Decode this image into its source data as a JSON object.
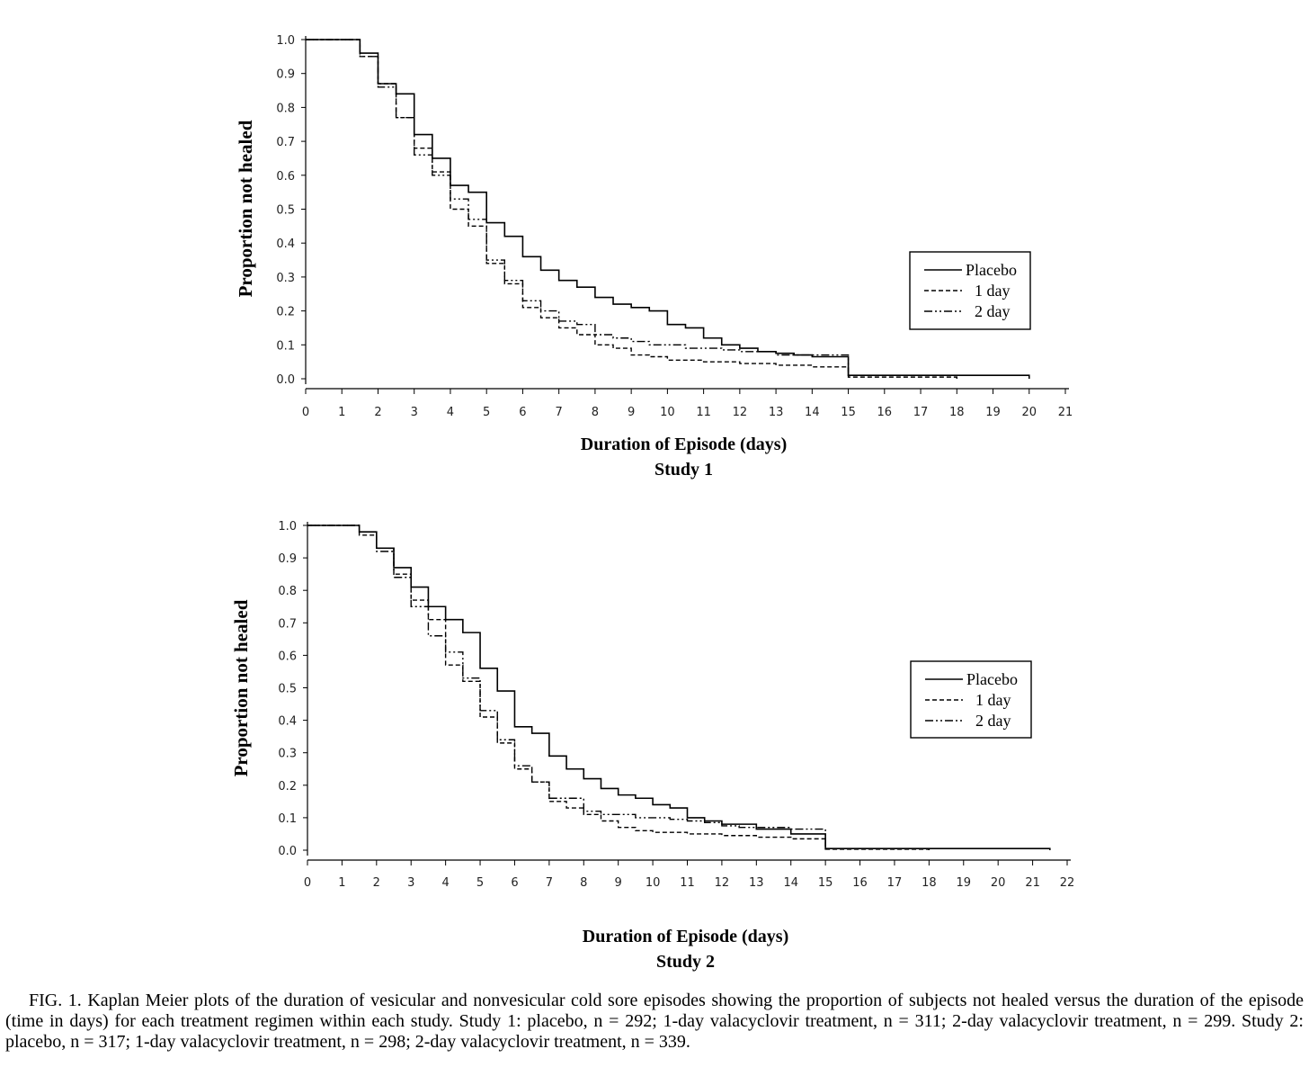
{
  "figure": {
    "caption": "FIG. 1. Kaplan Meier plots of the duration of vesicular and nonvesicular cold sore episodes showing the proportion of subjects not healed versus the duration of the episode (time in days) for each treatment regimen within each study. Study 1: placebo, n = 292; 1-day valacyclovir treatment, n = 311; 2-day valacyclovir treatment, n = 299. Study 2: placebo, n = 317; 1-day valacyclovir treatment, n = 298; 2-day valacyclovir treatment, n = 339."
  },
  "chart_data": [
    {
      "type": "line",
      "step": true,
      "title": "Study 1",
      "xlabel": "Duration of Episode (days)",
      "ylabel": "Proportion not healed",
      "xlim": [
        0,
        21
      ],
      "ylim": [
        0,
        1.0
      ],
      "xticks": [
        0,
        1,
        2,
        3,
        4,
        5,
        6,
        7,
        8,
        9,
        10,
        11,
        12,
        13,
        14,
        15,
        16,
        17,
        18,
        19,
        20,
        21
      ],
      "yticks": [
        "0.0",
        "0.1",
        "0.2",
        "0.3",
        "0.4",
        "0.5",
        "0.6",
        "0.7",
        "0.8",
        "0.9",
        "1.0"
      ],
      "legend": {
        "position": "right",
        "entries": [
          "Placebo",
          "1 day",
          "2 day"
        ]
      },
      "series": [
        {
          "name": "Placebo",
          "style": "solid",
          "x": [
            0,
            1.5,
            2,
            2.5,
            3,
            3.5,
            4,
            4.5,
            5,
            5.5,
            6,
            6.5,
            7,
            7.5,
            8,
            8.5,
            9,
            9.5,
            10,
            10.5,
            11,
            11.5,
            12,
            12.5,
            13,
            13.5,
            14,
            15,
            20
          ],
          "y": [
            1.0,
            0.96,
            0.87,
            0.84,
            0.72,
            0.65,
            0.57,
            0.55,
            0.46,
            0.42,
            0.36,
            0.32,
            0.29,
            0.27,
            0.24,
            0.22,
            0.21,
            0.2,
            0.16,
            0.15,
            0.12,
            0.1,
            0.09,
            0.08,
            0.075,
            0.07,
            0.065,
            0.01,
            0.0
          ]
        },
        {
          "name": "1 day",
          "style": "dashed",
          "x": [
            0,
            1.5,
            2,
            2.5,
            3,
            3.5,
            4,
            4.5,
            5,
            5.5,
            6,
            6.5,
            7,
            7.5,
            8,
            8.5,
            9,
            9.5,
            10,
            11,
            12,
            13,
            14,
            15,
            18
          ],
          "y": [
            1.0,
            0.95,
            0.87,
            0.77,
            0.68,
            0.61,
            0.5,
            0.45,
            0.34,
            0.28,
            0.21,
            0.18,
            0.15,
            0.13,
            0.1,
            0.09,
            0.07,
            0.065,
            0.055,
            0.05,
            0.045,
            0.04,
            0.035,
            0.005,
            0.0
          ]
        },
        {
          "name": "2 day",
          "style": "dashdot",
          "x": [
            0,
            1.5,
            2,
            2.5,
            3,
            3.5,
            4,
            4.5,
            5,
            5.5,
            6,
            6.5,
            7,
            7.5,
            8,
            8.5,
            9,
            9.5,
            10,
            10.5,
            11,
            11.5,
            12,
            12.5,
            13,
            14,
            15,
            18
          ],
          "y": [
            1.0,
            0.95,
            0.86,
            0.77,
            0.66,
            0.6,
            0.53,
            0.47,
            0.35,
            0.29,
            0.23,
            0.2,
            0.17,
            0.16,
            0.13,
            0.12,
            0.11,
            0.1,
            0.1,
            0.09,
            0.09,
            0.085,
            0.08,
            0.08,
            0.07,
            0.07,
            0.01,
            0.0
          ]
        }
      ]
    },
    {
      "type": "line",
      "step": true,
      "title": "Study 2",
      "xlabel": "Duration of Episode (days)",
      "ylabel": "Proportion not healed",
      "xlim": [
        0,
        22
      ],
      "ylim": [
        0,
        1.0
      ],
      "xticks": [
        0,
        1,
        2,
        3,
        4,
        5,
        6,
        7,
        8,
        9,
        10,
        11,
        12,
        13,
        14,
        15,
        16,
        17,
        18,
        19,
        20,
        21,
        22
      ],
      "yticks": [
        "0.0",
        "0.1",
        "0.2",
        "0.3",
        "0.4",
        "0.5",
        "0.6",
        "0.7",
        "0.8",
        "0.9",
        "1.0"
      ],
      "legend": {
        "position": "right",
        "entries": [
          "Placebo",
          "1 day",
          "2 day"
        ]
      },
      "series": [
        {
          "name": "Placebo",
          "style": "solid",
          "x": [
            0,
            1.5,
            2,
            2.5,
            3,
            3.5,
            4,
            4.5,
            5,
            5.5,
            6,
            6.5,
            7,
            7.5,
            8,
            8.5,
            9,
            9.5,
            10,
            10.5,
            11,
            11.5,
            12,
            13,
            14,
            15,
            21.5
          ],
          "y": [
            1.0,
            0.98,
            0.93,
            0.87,
            0.81,
            0.75,
            0.71,
            0.67,
            0.56,
            0.49,
            0.38,
            0.36,
            0.29,
            0.25,
            0.22,
            0.19,
            0.17,
            0.16,
            0.14,
            0.13,
            0.1,
            0.09,
            0.08,
            0.065,
            0.05,
            0.005,
            0.0
          ]
        },
        {
          "name": "1 day",
          "style": "dashed",
          "x": [
            0,
            1.5,
            2,
            2.5,
            3,
            3.5,
            4,
            4.5,
            5,
            5.5,
            6,
            6.5,
            7,
            7.5,
            8,
            8.5,
            9,
            9.5,
            10,
            11,
            12,
            13,
            14,
            15,
            18
          ],
          "y": [
            1.0,
            0.97,
            0.93,
            0.85,
            0.77,
            0.71,
            0.57,
            0.52,
            0.41,
            0.33,
            0.25,
            0.21,
            0.15,
            0.13,
            0.11,
            0.09,
            0.07,
            0.06,
            0.055,
            0.05,
            0.045,
            0.04,
            0.035,
            0.003,
            0.0
          ]
        },
        {
          "name": "2 day",
          "style": "dashdot",
          "x": [
            0,
            1.5,
            2,
            2.5,
            3,
            3.5,
            4,
            4.5,
            5,
            5.5,
            6,
            6.5,
            7,
            7.5,
            8,
            8.5,
            9,
            9.5,
            10,
            10.5,
            11,
            11.5,
            12,
            12.5,
            13,
            14,
            15,
            18
          ],
          "y": [
            1.0,
            0.98,
            0.92,
            0.84,
            0.75,
            0.66,
            0.61,
            0.53,
            0.43,
            0.34,
            0.26,
            0.21,
            0.16,
            0.16,
            0.12,
            0.11,
            0.11,
            0.1,
            0.1,
            0.095,
            0.09,
            0.085,
            0.075,
            0.07,
            0.07,
            0.065,
            0.005,
            0.0
          ]
        }
      ]
    }
  ]
}
